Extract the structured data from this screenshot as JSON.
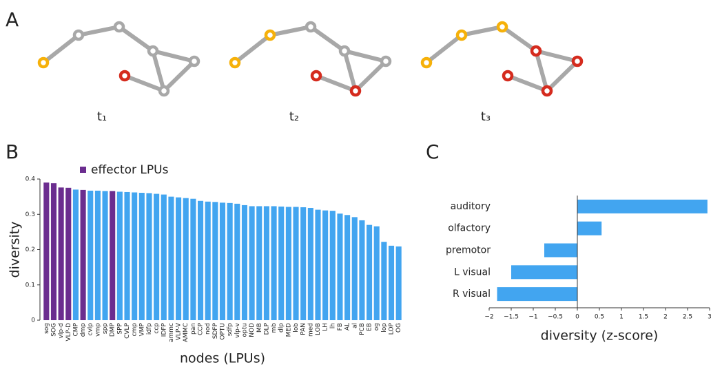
{
  "panel_labels": [
    "A",
    "B",
    "C"
  ],
  "panel_a": {
    "time_labels": [
      "t₁",
      "t₂",
      "t₃"
    ]
  },
  "chart_data": [
    {
      "type": "bar",
      "xlabel": "nodes (LPUs)",
      "ylabel": "diversity",
      "categories": [
        "sog",
        "SOG",
        "vlp-d",
        "VLP-D",
        "CMP",
        "dmp",
        "cvlp",
        "vmp",
        "spp",
        "DMP",
        "SPP",
        "CVLP",
        "cmp",
        "VMP",
        "idfp",
        "ccp",
        "IDFP",
        "ammc",
        "VLP-V",
        "AMMC",
        "pan",
        "CCP",
        "nod",
        "SDFP",
        "OPTU",
        "sdfp",
        "vlp-v",
        "optu",
        "NOD",
        "MB",
        "DLP",
        "mb",
        "dlp",
        "MED",
        "lob",
        "PAN",
        "med",
        "LOB",
        "LH",
        "lh",
        "FB",
        "AL",
        "al",
        "PCB",
        "EB",
        "og",
        "lop",
        "LOP",
        "OG"
      ],
      "values": [
        0.39,
        0.388,
        0.376,
        0.375,
        0.37,
        0.369,
        0.367,
        0.367,
        0.366,
        0.366,
        0.364,
        0.363,
        0.362,
        0.361,
        0.36,
        0.358,
        0.356,
        0.35,
        0.348,
        0.346,
        0.344,
        0.338,
        0.336,
        0.335,
        0.333,
        0.332,
        0.33,
        0.326,
        0.323,
        0.323,
        0.323,
        0.323,
        0.322,
        0.321,
        0.321,
        0.32,
        0.318,
        0.313,
        0.311,
        0.31,
        0.302,
        0.298,
        0.292,
        0.283,
        0.27,
        0.266,
        0.222,
        0.211,
        0.209
      ],
      "colors": [
        "#6b2d8f",
        "#6b2d8f",
        "#6b2d8f",
        "#6b2d8f",
        "#42a5f0",
        "#6b2d8f",
        "#42a5f0",
        "#42a5f0",
        "#42a5f0",
        "#6b2d8f",
        "#42a5f0",
        "#42a5f0",
        "#42a5f0",
        "#42a5f0",
        "#42a5f0",
        "#42a5f0",
        "#42a5f0",
        "#42a5f0",
        "#42a5f0",
        "#42a5f0",
        "#42a5f0",
        "#42a5f0",
        "#42a5f0",
        "#42a5f0",
        "#42a5f0",
        "#42a5f0",
        "#42a5f0",
        "#42a5f0",
        "#42a5f0",
        "#42a5f0",
        "#42a5f0",
        "#42a5f0",
        "#42a5f0",
        "#42a5f0",
        "#42a5f0",
        "#42a5f0",
        "#42a5f0",
        "#42a5f0",
        "#42a5f0",
        "#42a5f0",
        "#42a5f0",
        "#42a5f0",
        "#42a5f0",
        "#42a5f0",
        "#42a5f0",
        "#42a5f0",
        "#42a5f0",
        "#42a5f0",
        "#42a5f0"
      ],
      "legend": {
        "label": "effector LPUs",
        "color": "#6b2d8f"
      },
      "ylim": [
        0,
        0.4
      ],
      "yticks": [
        0,
        0.1,
        0.2,
        0.3,
        0.4
      ]
    },
    {
      "type": "barh",
      "xlabel": "diversity (z-score)",
      "categories": [
        "auditory",
        "olfactory",
        "premotor",
        "L visual",
        "R visual"
      ],
      "values": [
        2.95,
        0.55,
        -0.75,
        -1.5,
        -1.82
      ],
      "color": "#42a5f0",
      "xlim": [
        -2,
        3
      ],
      "xticks": [
        {
          "value": -2,
          "label": "−2"
        },
        {
          "value": -1.5,
          "label": "−1.5"
        },
        {
          "value": -1,
          "label": "−1"
        },
        {
          "value": -0.5,
          "label": "−0.5"
        },
        0,
        0.5,
        1,
        1.5,
        2,
        2.5,
        3
      ]
    }
  ]
}
